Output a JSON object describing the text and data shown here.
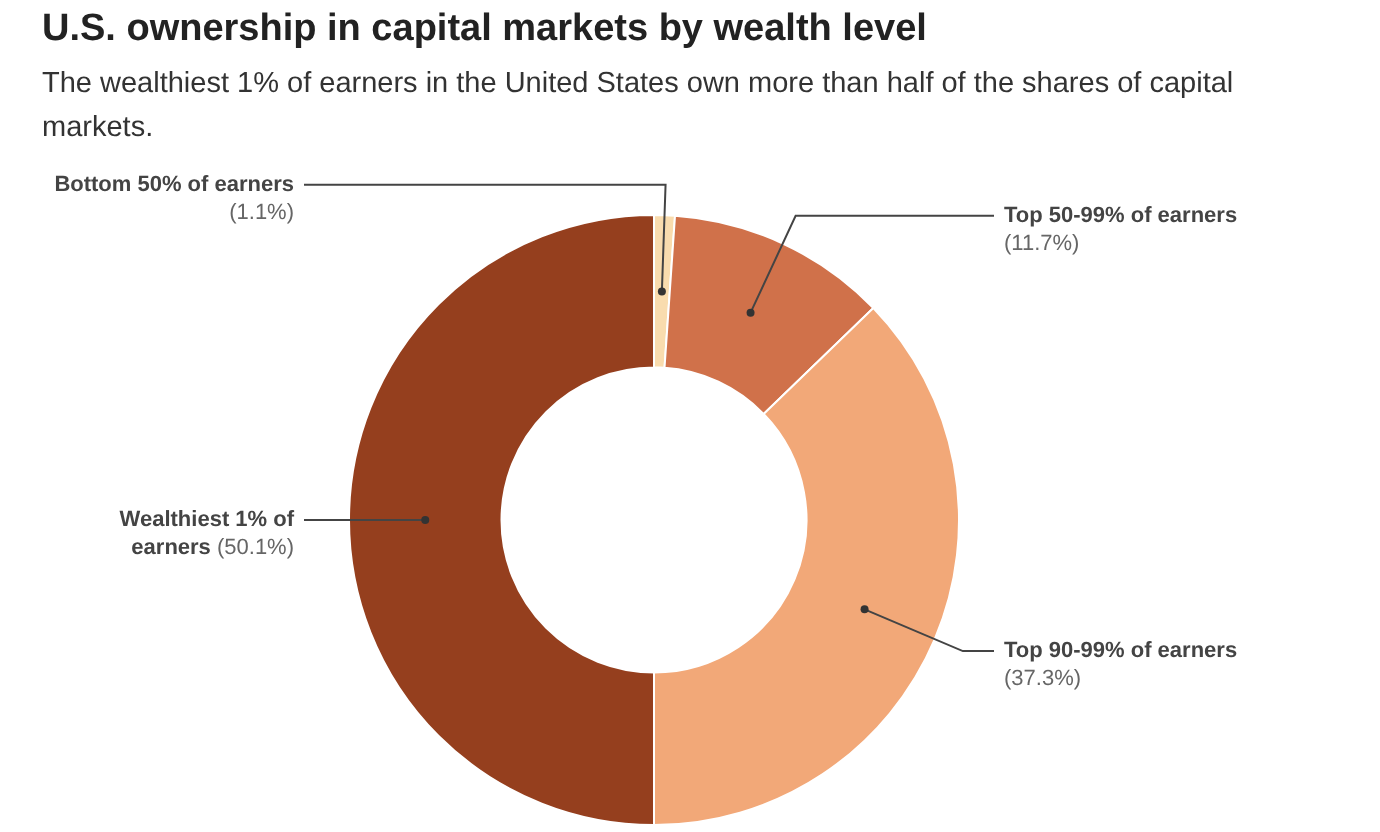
{
  "chart_data": {
    "type": "donut",
    "title": "U.S. ownership in capital markets by wealth level",
    "subtitle": "The wealthiest 1% of earners in the United States own more than half of the shares of capital markets.",
    "categories": [
      "Bottom 50% of earners",
      "Top 50-99% of earners",
      "Top 90-99% of earners",
      "Wealthiest 1% of earners"
    ],
    "values": [
      1.1,
      11.7,
      37.3,
      50.1
    ],
    "colors": [
      "#f9dcae",
      "#d0714a",
      "#f2a878",
      "#953f1e"
    ],
    "value_labels": [
      "(1.1%)",
      "(11.7%)",
      "(37.3%)",
      "(50.1%)"
    ]
  }
}
